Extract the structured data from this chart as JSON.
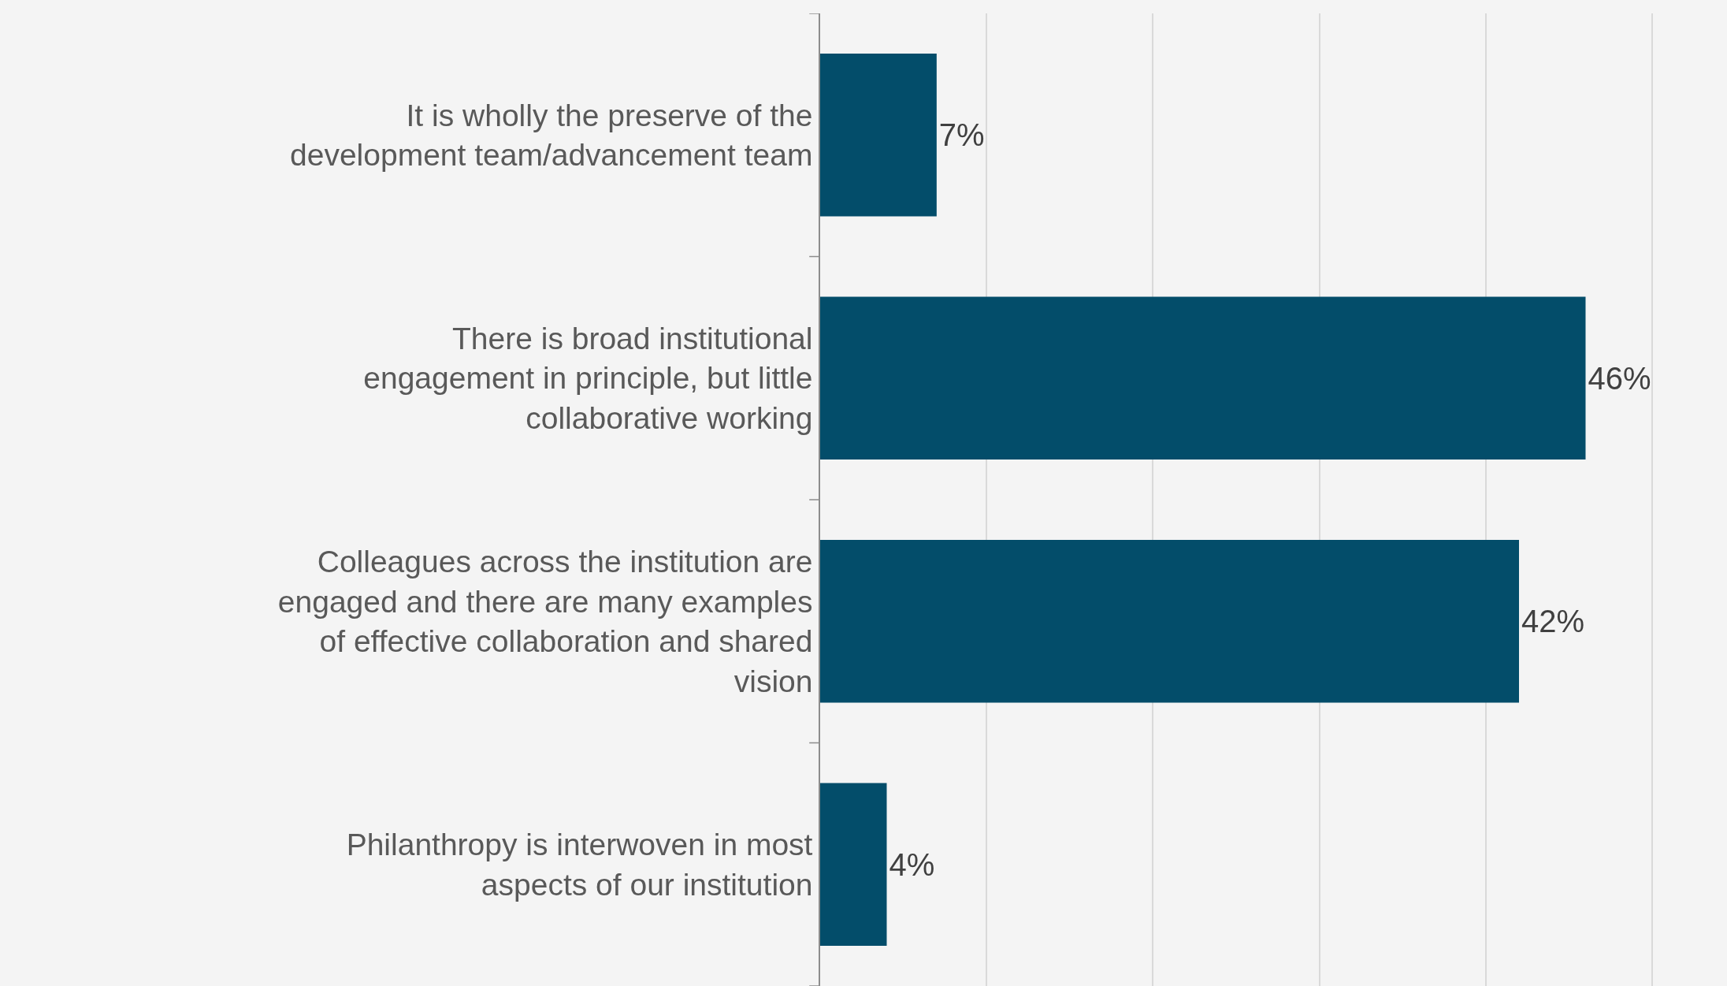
{
  "chart_data": {
    "type": "bar",
    "orientation": "horizontal",
    "categories": [
      "It is wholly the preserve of the development team/advancement team",
      "There is broad institutional engagement in principle, but little collaborative working",
      "Colleagues across the institution are engaged and there are many examples of effective collaboration and shared vision",
      "Philanthropy is interwoven in most aspects of our institution"
    ],
    "values": [
      7,
      46,
      42,
      4
    ],
    "value_labels": [
      "7%",
      "46%",
      "42%",
      "4%"
    ],
    "color": "#034d6a",
    "xlim": [
      0,
      54.5
    ],
    "xticks": [
      {
        "value": 0,
        "label": null
      },
      {
        "value": 10,
        "label": null
      },
      {
        "value": 20,
        "label": null
      },
      {
        "value": 30,
        "label": null
      },
      {
        "value": 40,
        "label": null
      },
      {
        "value": 50,
        "label": null
      }
    ],
    "grid": "x",
    "legend": false,
    "tick_labels": "y"
  }
}
